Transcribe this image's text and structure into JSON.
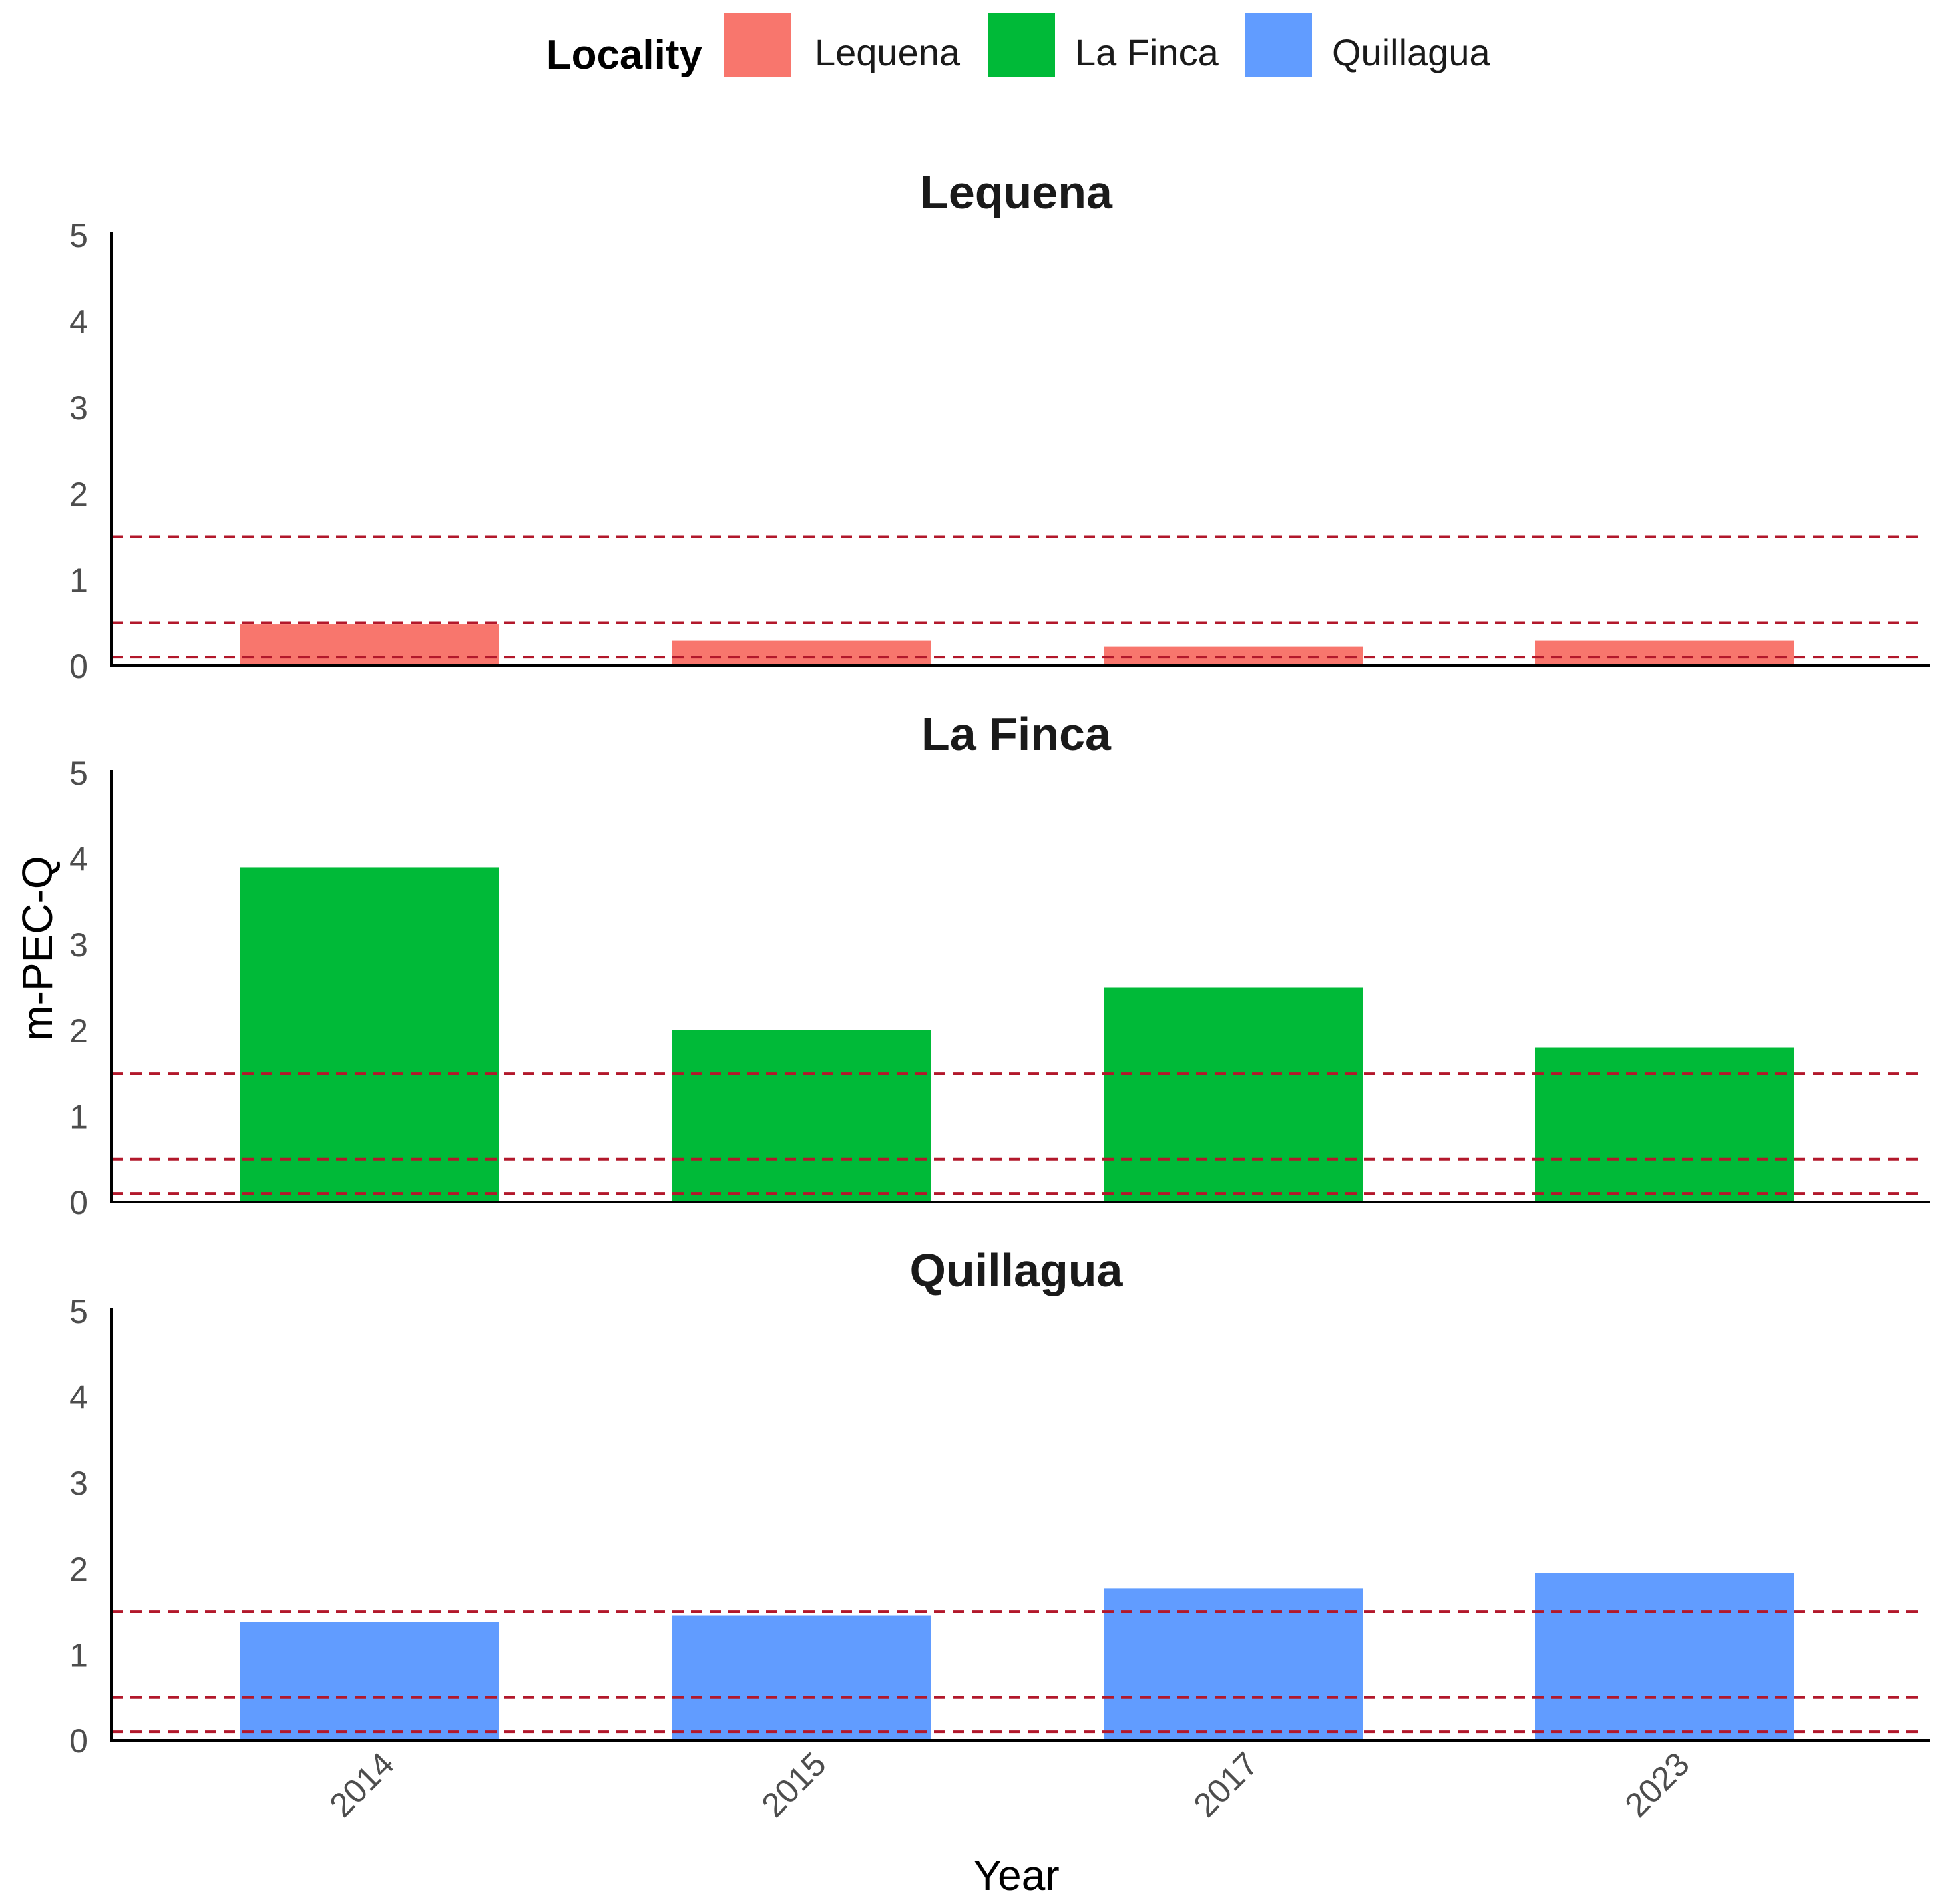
{
  "chart_data": {
    "type": "bar",
    "categories": [
      "2014",
      "2015",
      "2017",
      "2023"
    ],
    "xlabel": "Year",
    "ylabel": "m-PEC-Q",
    "ylim": [
      0,
      5
    ],
    "yticks": [
      "0",
      "1",
      "2",
      "3",
      "4",
      "5"
    ],
    "reference_lines": [
      0.1,
      0.5,
      1.5
    ],
    "reference_line_color": "#b2182b",
    "reference_line_style": "dashed",
    "grid": false,
    "legend": {
      "title": "Locality",
      "position": "top",
      "entries": [
        {
          "label": "Lequena",
          "color": "#f8766d"
        },
        {
          "label": "La Finca",
          "color": "#00ba38"
        },
        {
          "label": "Quillagua",
          "color": "#619cff"
        }
      ]
    },
    "panels": [
      {
        "title": "Lequena",
        "color": "#f8766d",
        "values": [
          0.48,
          0.29,
          0.22,
          0.29
        ]
      },
      {
        "title": "La Finca",
        "color": "#00ba38",
        "values": [
          3.9,
          2.0,
          2.5,
          1.8
        ]
      },
      {
        "title": "Quillagua",
        "color": "#619cff",
        "values": [
          1.38,
          1.45,
          1.77,
          1.95
        ]
      }
    ]
  }
}
